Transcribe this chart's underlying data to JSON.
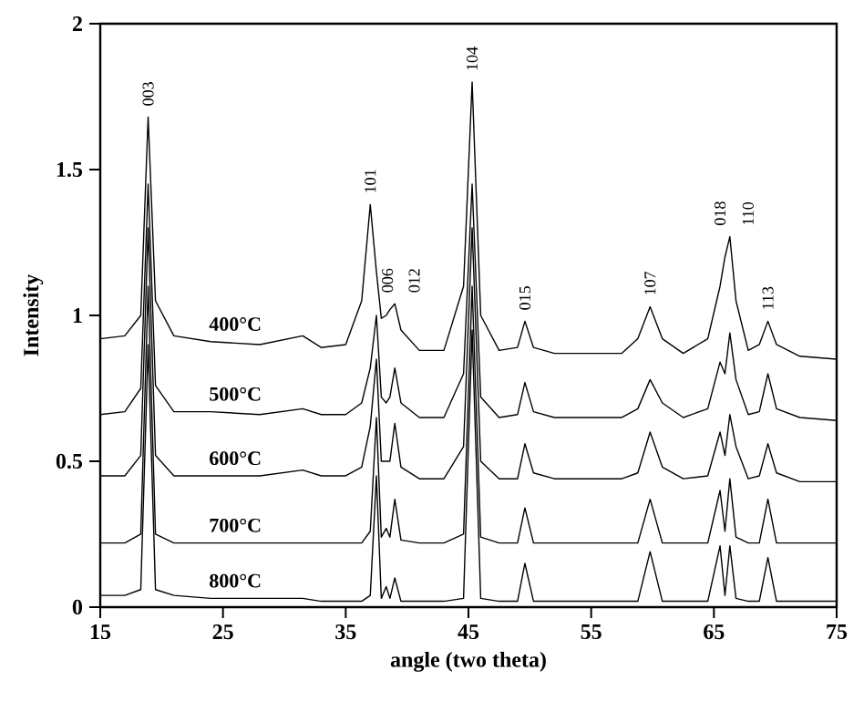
{
  "chart_data": {
    "type": "line",
    "xlabel": "angle (two theta)",
    "ylabel": "Intensity",
    "xlim": [
      15,
      75
    ],
    "ylim": [
      0,
      2
    ],
    "xticks": [
      15,
      25,
      35,
      45,
      55,
      65,
      75
    ],
    "yticks": [
      0,
      0.5,
      1,
      1.5,
      2
    ],
    "x": [
      15,
      17,
      18.3,
      18.9,
      19.5,
      21,
      24,
      28,
      31.5,
      33,
      35,
      36.3,
      37.0,
      37.5,
      37.9,
      38.3,
      38.6,
      39.0,
      39.5,
      41,
      43,
      44.6,
      45.3,
      46.0,
      47.5,
      49.0,
      49.6,
      50.3,
      52,
      55,
      57.5,
      58.8,
      59.8,
      60.8,
      62.5,
      64.5,
      65.5,
      65.9,
      66.3,
      66.8,
      67.8,
      68.7,
      69.4,
      70.1,
      72,
      75
    ],
    "series": [
      {
        "name": "400°C",
        "color": "#000000",
        "values": [
          0.92,
          0.93,
          1.0,
          1.68,
          1.05,
          0.93,
          0.91,
          0.9,
          0.93,
          0.89,
          0.9,
          1.05,
          1.38,
          1.15,
          0.99,
          1.0,
          1.02,
          1.04,
          0.95,
          0.88,
          0.88,
          1.1,
          1.8,
          1.0,
          0.88,
          0.89,
          0.98,
          0.89,
          0.87,
          0.87,
          0.87,
          0.92,
          1.03,
          0.92,
          0.87,
          0.92,
          1.1,
          1.2,
          1.27,
          1.05,
          0.88,
          0.9,
          0.98,
          0.9,
          0.86,
          0.85
        ]
      },
      {
        "name": "500°C",
        "color": "#000000",
        "values": [
          0.66,
          0.67,
          0.75,
          1.45,
          0.76,
          0.67,
          0.67,
          0.66,
          0.68,
          0.66,
          0.66,
          0.7,
          0.82,
          1.0,
          0.72,
          0.7,
          0.72,
          0.82,
          0.7,
          0.65,
          0.65,
          0.8,
          1.45,
          0.72,
          0.65,
          0.66,
          0.77,
          0.67,
          0.65,
          0.65,
          0.65,
          0.68,
          0.78,
          0.7,
          0.65,
          0.68,
          0.84,
          0.8,
          0.94,
          0.78,
          0.66,
          0.67,
          0.8,
          0.68,
          0.65,
          0.64
        ]
      },
      {
        "name": "600°C",
        "color": "#000000",
        "values": [
          0.45,
          0.45,
          0.52,
          1.3,
          0.52,
          0.45,
          0.45,
          0.45,
          0.47,
          0.45,
          0.45,
          0.48,
          0.62,
          0.85,
          0.5,
          0.5,
          0.5,
          0.63,
          0.48,
          0.44,
          0.44,
          0.55,
          1.3,
          0.5,
          0.44,
          0.44,
          0.56,
          0.46,
          0.44,
          0.44,
          0.44,
          0.46,
          0.6,
          0.48,
          0.44,
          0.45,
          0.6,
          0.52,
          0.66,
          0.55,
          0.44,
          0.45,
          0.56,
          0.46,
          0.43,
          0.43
        ]
      },
      {
        "name": "700°C",
        "color": "#000000",
        "values": [
          0.22,
          0.22,
          0.25,
          1.1,
          0.25,
          0.22,
          0.22,
          0.22,
          0.22,
          0.22,
          0.22,
          0.22,
          0.26,
          0.65,
          0.24,
          0.27,
          0.24,
          0.37,
          0.23,
          0.22,
          0.22,
          0.25,
          1.1,
          0.24,
          0.22,
          0.22,
          0.34,
          0.22,
          0.22,
          0.22,
          0.22,
          0.22,
          0.37,
          0.22,
          0.22,
          0.22,
          0.4,
          0.26,
          0.44,
          0.24,
          0.22,
          0.22,
          0.37,
          0.22,
          0.22,
          0.22
        ]
      },
      {
        "name": "800°C",
        "color": "#000000",
        "values": [
          0.04,
          0.04,
          0.06,
          0.9,
          0.06,
          0.04,
          0.03,
          0.03,
          0.03,
          0.02,
          0.02,
          0.02,
          0.04,
          0.45,
          0.03,
          0.07,
          0.03,
          0.1,
          0.02,
          0.02,
          0.02,
          0.03,
          0.95,
          0.03,
          0.02,
          0.02,
          0.15,
          0.02,
          0.02,
          0.02,
          0.02,
          0.02,
          0.19,
          0.02,
          0.02,
          0.02,
          0.21,
          0.04,
          0.21,
          0.03,
          0.02,
          0.02,
          0.17,
          0.02,
          0.02,
          0.02
        ]
      }
    ],
    "annotations": [
      {
        "text": "003",
        "x": 18.9,
        "y": 1.68
      },
      {
        "text": "101",
        "x": 37.0,
        "y": 1.38
      },
      {
        "text": "006",
        "x": 38.4,
        "y": 1.04
      },
      {
        "text": "012",
        "x": 39.1,
        "y": 1.04
      },
      {
        "text": "104",
        "x": 45.3,
        "y": 1.8
      },
      {
        "text": "015",
        "x": 49.6,
        "y": 0.98
      },
      {
        "text": "107",
        "x": 59.8,
        "y": 1.03
      },
      {
        "text": "018",
        "x": 65.5,
        "y": 1.27
      },
      {
        "text": "110",
        "x": 66.3,
        "y": 1.27
      },
      {
        "text": "113",
        "x": 69.4,
        "y": 0.98
      }
    ]
  }
}
